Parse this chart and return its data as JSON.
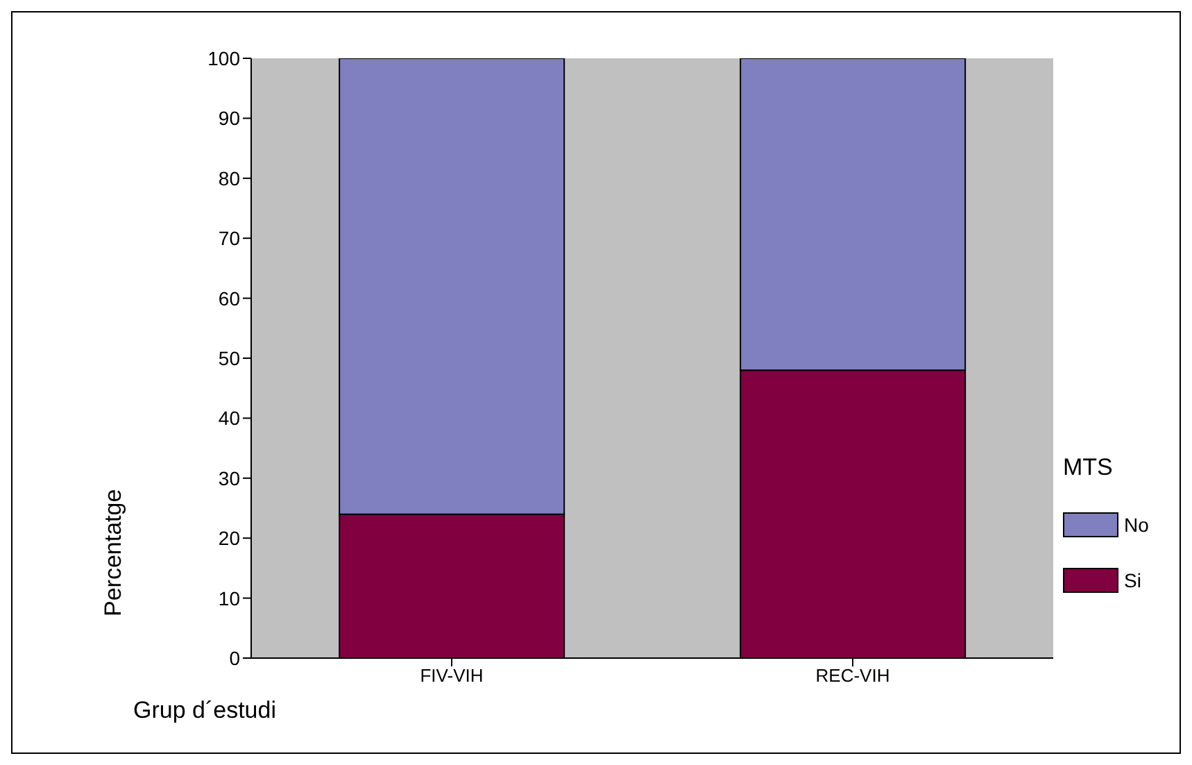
{
  "chart_data": {
    "type": "bar",
    "stacked": true,
    "xlabel": "Grup d´estudi",
    "ylabel": "Percentatge",
    "legend_title": "MTS",
    "legend": "right",
    "categories": [
      "FIV-VIH",
      "REC-VIH"
    ],
    "series": [
      {
        "name": "Si",
        "color": "#800040",
        "values": [
          24,
          48
        ]
      },
      {
        "name": "No",
        "color": "#8080c0",
        "values": [
          76,
          52
        ]
      }
    ],
    "ylim": [
      0,
      100
    ],
    "yticks": [
      0,
      10,
      20,
      30,
      40,
      50,
      60,
      70,
      80,
      90,
      100
    ]
  }
}
